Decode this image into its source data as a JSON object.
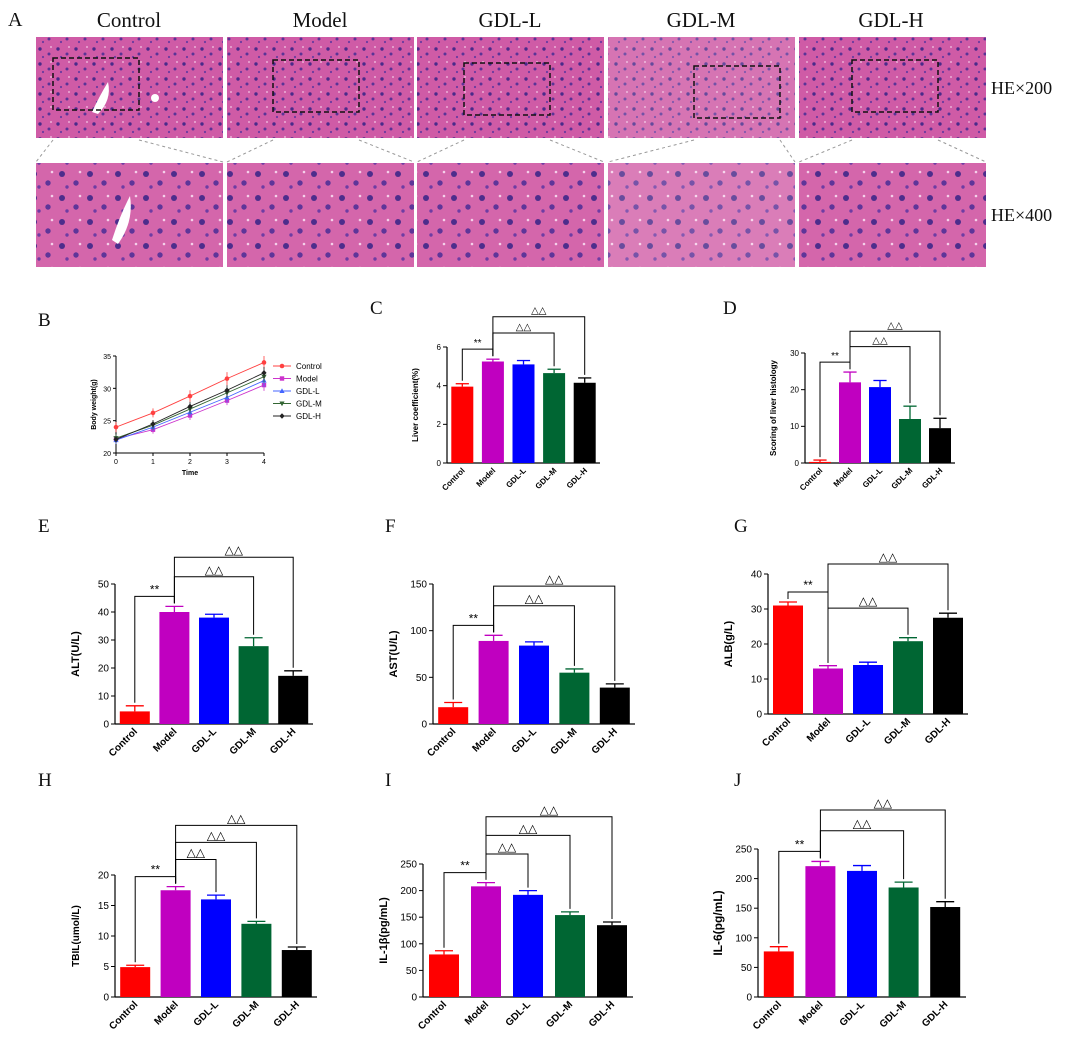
{
  "panel_letters": {
    "A": "A",
    "B": "B",
    "C": "C",
    "D": "D",
    "E": "E",
    "F": "F",
    "G": "G",
    "H": "H",
    "I": "I",
    "J": "J"
  },
  "histology": {
    "groups": [
      "Control",
      "Model",
      "GDL-L",
      "GDL-M",
      "GDL-H"
    ],
    "row_labels": [
      "HE×200",
      "HE×400"
    ]
  },
  "colors": {
    "Control": "#ff0000",
    "Model": "#c000c0",
    "GDL-L": "#0000ff",
    "GDL-M": "#006633",
    "GDL-H": "#000000",
    "stain_base": "#c9549d",
    "line_Control": "#ff4040",
    "line_Model": "#cc33cc",
    "line_GDL-L": "#4466ff",
    "line_GDL-M": "#336633",
    "line_GDL-H": "#222222"
  },
  "chart_data": [
    {
      "id": "B",
      "type": "line",
      "xlabel": "Time",
      "ylabel": "Body weight(g)",
      "x": [
        0,
        1,
        2,
        3,
        4
      ],
      "xticks": [
        "0",
        "1",
        "2",
        "3",
        "4"
      ],
      "yticks": [
        "20",
        "25",
        "30",
        "35"
      ],
      "ylim": [
        20,
        35
      ],
      "legend": "right",
      "series": [
        {
          "name": "Control",
          "values": [
            24.0,
            26.2,
            28.8,
            31.5,
            34.0
          ],
          "err": [
            0.8,
            0.7,
            0.9,
            1.0,
            1.0
          ]
        },
        {
          "name": "Model",
          "values": [
            22.2,
            23.6,
            25.8,
            28.1,
            30.5
          ],
          "err": [
            0.5,
            0.6,
            0.7,
            0.7,
            0.9
          ]
        },
        {
          "name": "GDL-L",
          "values": [
            22.0,
            24.0,
            26.3,
            28.6,
            31.2
          ],
          "err": [
            0.6,
            0.6,
            0.7,
            0.8,
            1.0
          ]
        },
        {
          "name": "GDL-M",
          "values": [
            22.3,
            24.3,
            26.8,
            29.3,
            31.8
          ],
          "err": [
            0.6,
            0.7,
            0.7,
            0.8,
            0.9
          ]
        },
        {
          "name": "GDL-H",
          "values": [
            22.1,
            24.5,
            27.2,
            29.7,
            32.4
          ],
          "err": [
            0.5,
            0.6,
            0.7,
            0.8,
            0.9
          ]
        }
      ]
    },
    {
      "id": "C",
      "type": "bar",
      "ylabel": "Liver coefficient(%)",
      "categories": [
        "Control",
        "Model",
        "GDL-L",
        "GDL-M",
        "GDL-H"
      ],
      "values": [
        3.95,
        5.25,
        5.1,
        4.65,
        4.15
      ],
      "err": [
        0.15,
        0.12,
        0.2,
        0.2,
        0.25
      ],
      "ylim": [
        0,
        6
      ],
      "yticks": [
        "0",
        "2",
        "4",
        "6"
      ],
      "sig": [
        {
          "from": 0,
          "to": 1,
          "label": "**"
        },
        {
          "from": 1,
          "to": 3,
          "label": "△△"
        },
        {
          "from": 1,
          "to": 4,
          "label": "△△"
        }
      ]
    },
    {
      "id": "D",
      "type": "bar",
      "ylabel": "Scoring of liver histology",
      "categories": [
        "Control",
        "Model",
        "GDL-L",
        "GDL-M",
        "GDL-H"
      ],
      "values": [
        0.3,
        22,
        20.7,
        12,
        9.5
      ],
      "err": [
        0.5,
        2.8,
        1.8,
        3.5,
        2.7
      ],
      "ylim": [
        0,
        30
      ],
      "yticks": [
        "0",
        "10",
        "20",
        "30"
      ],
      "sig": [
        {
          "from": 0,
          "to": 1,
          "label": "**"
        },
        {
          "from": 1,
          "to": 3,
          "label": "△△"
        },
        {
          "from": 1,
          "to": 4,
          "label": "△△"
        }
      ]
    },
    {
      "id": "E",
      "type": "bar",
      "ylabel": "ALT(U/L)",
      "categories": [
        "Control",
        "Model",
        "GDL-L",
        "GDL-M",
        "GDL-H"
      ],
      "values": [
        4.5,
        40,
        38,
        27.8,
        17.2
      ],
      "err": [
        2,
        2,
        1.2,
        3,
        1.8
      ],
      "ylim": [
        0,
        50
      ],
      "yticks": [
        "0",
        "10",
        "20",
        "30",
        "40",
        "50"
      ],
      "sig": [
        {
          "from": 0,
          "to": 1,
          "label": "**"
        },
        {
          "from": 1,
          "to": 3,
          "label": "△△"
        },
        {
          "from": 1,
          "to": 4,
          "label": "△△"
        }
      ]
    },
    {
      "id": "F",
      "type": "bar",
      "ylabel": "AST(U/L)",
      "categories": [
        "Control",
        "Model",
        "GDL-L",
        "GDL-M",
        "GDL-H"
      ],
      "values": [
        18,
        89,
        84,
        55,
        39
      ],
      "err": [
        5,
        6,
        4,
        4,
        4
      ],
      "ylim": [
        0,
        150
      ],
      "yticks": [
        "0",
        "50",
        "100",
        "150"
      ],
      "sig": [
        {
          "from": 0,
          "to": 1,
          "label": "**"
        },
        {
          "from": 1,
          "to": 3,
          "label": "△△"
        },
        {
          "from": 1,
          "to": 4,
          "label": "△△"
        }
      ]
    },
    {
      "id": "G",
      "type": "bar",
      "ylabel": "ALB(g/L)",
      "categories": [
        "Control",
        "Model",
        "GDL-L",
        "GDL-M",
        "GDL-H"
      ],
      "values": [
        31,
        13,
        14,
        20.8,
        27.5
      ],
      "err": [
        1,
        0.8,
        0.8,
        1,
        1.3
      ],
      "ylim": [
        0,
        40
      ],
      "yticks": [
        "0",
        "10",
        "20",
        "30",
        "40"
      ],
      "sig": [
        {
          "from": 0,
          "to": 1,
          "label": "**"
        },
        {
          "from": 1,
          "to": 3,
          "label": "△△"
        },
        {
          "from": 1,
          "to": 4,
          "label": "△△"
        }
      ]
    },
    {
      "id": "H",
      "type": "bar",
      "ylabel": "TBIL(umol/L)",
      "categories": [
        "Control",
        "Model",
        "GDL-L",
        "GDL-M",
        "GDL-H"
      ],
      "values": [
        4.9,
        17.5,
        16,
        12,
        7.7
      ],
      "err": [
        0.3,
        0.6,
        0.7,
        0.4,
        0.5
      ],
      "ylim": [
        0,
        20
      ],
      "yticks": [
        "0",
        "5",
        "10",
        "15",
        "20"
      ],
      "sig": [
        {
          "from": 0,
          "to": 1,
          "label": "**"
        },
        {
          "from": 1,
          "to": 2,
          "label": "△△"
        },
        {
          "from": 1,
          "to": 3,
          "label": "△△"
        },
        {
          "from": 1,
          "to": 4,
          "label": "△△"
        }
      ]
    },
    {
      "id": "I",
      "type": "bar",
      "ylabel": "IL-1β(pg/mL)",
      "categories": [
        "Control",
        "Model",
        "GDL-L",
        "GDL-M",
        "GDL-H"
      ],
      "values": [
        80,
        208,
        192,
        154,
        135
      ],
      "err": [
        7,
        7,
        8,
        6,
        6
      ],
      "ylim": [
        0,
        250
      ],
      "yticks": [
        "0",
        "50",
        "100",
        "150",
        "200",
        "250"
      ],
      "sig": [
        {
          "from": 0,
          "to": 1,
          "label": "**"
        },
        {
          "from": 1,
          "to": 2,
          "label": "△△"
        },
        {
          "from": 1,
          "to": 3,
          "label": "△△"
        },
        {
          "from": 1,
          "to": 4,
          "label": "△△"
        }
      ]
    },
    {
      "id": "J",
      "type": "bar",
      "ylabel": "IL-6(pg/mL)",
      "categories": [
        "Control",
        "Model",
        "GDL-L",
        "GDL-M",
        "GDL-H"
      ],
      "values": [
        77,
        221,
        213,
        185,
        152
      ],
      "err": [
        8,
        8,
        9,
        9,
        9
      ],
      "ylim": [
        0,
        250
      ],
      "yticks": [
        "0",
        "50",
        "100",
        "150",
        "200",
        "250"
      ],
      "sig": [
        {
          "from": 0,
          "to": 1,
          "label": "**"
        },
        {
          "from": 1,
          "to": 3,
          "label": "△△"
        },
        {
          "from": 1,
          "to": 4,
          "label": "△△"
        }
      ]
    }
  ]
}
